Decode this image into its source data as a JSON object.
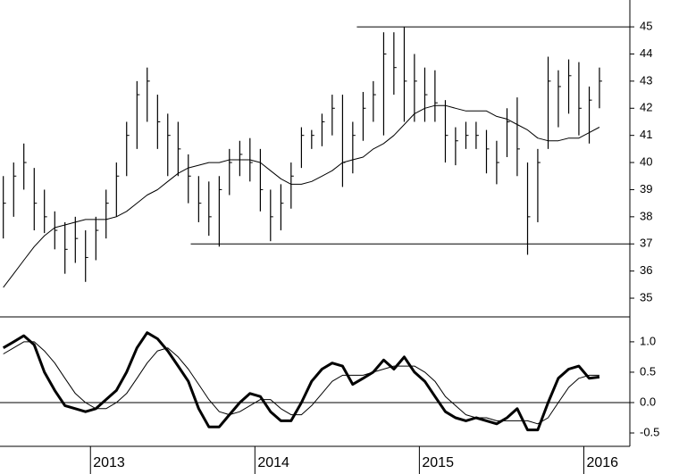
{
  "chart_data": [
    {
      "type": "ohlc",
      "x": [
        2012.47,
        2012.533,
        2012.595,
        2012.658,
        2012.72,
        2012.783,
        2012.845,
        2012.908,
        2012.97,
        2013.033,
        2013.095,
        2013.158,
        2013.22,
        2013.283,
        2013.345,
        2013.408,
        2013.47,
        2013.533,
        2013.595,
        2013.658,
        2013.72,
        2013.783,
        2013.845,
        2013.908,
        2013.97,
        2014.033,
        2014.095,
        2014.158,
        2014.22,
        2014.283,
        2014.345,
        2014.408,
        2014.47,
        2014.533,
        2014.595,
        2014.658,
        2014.72,
        2014.783,
        2014.845,
        2014.908,
        2014.97,
        2015.033,
        2015.095,
        2015.158,
        2015.22,
        2015.283,
        2015.345,
        2015.408,
        2015.47,
        2015.533,
        2015.595,
        2015.658,
        2015.72,
        2015.783,
        2015.845,
        2015.908,
        2015.97,
        2016.033,
        2016.095
      ],
      "high": [
        39.5,
        40,
        40.7,
        39.8,
        39,
        38.2,
        37.8,
        38,
        37.5,
        38,
        39,
        40,
        41.5,
        43,
        43.5,
        42.5,
        41.8,
        41.5,
        40.3,
        39.5,
        39.3,
        39.5,
        40.5,
        40.8,
        40.9,
        40.5,
        39,
        39.2,
        40,
        41.3,
        41.2,
        41.8,
        42.5,
        42.5,
        41.5,
        42.6,
        43,
        44.8,
        44.8,
        45,
        44,
        43.5,
        43.4,
        42.3,
        41.3,
        41.5,
        41.5,
        41.2,
        40.8,
        42,
        42.4,
        40,
        40.5,
        43.9,
        43.4,
        43.8,
        43.7,
        42.8,
        43.5
      ],
      "low": [
        37.2,
        38,
        39,
        37.5,
        37.4,
        36.8,
        35.9,
        36.3,
        35.6,
        36.4,
        37.2,
        38,
        39.5,
        40.5,
        41.5,
        40.5,
        39.5,
        39.5,
        38.5,
        37.8,
        37.3,
        36.9,
        38.8,
        39.5,
        39.3,
        38.2,
        37.1,
        37.5,
        38.3,
        39.8,
        40.5,
        40.6,
        41,
        39.1,
        39.6,
        40.8,
        41.5,
        41,
        42.5,
        41.5,
        41.5,
        41.5,
        41.5,
        40,
        39.9,
        40.5,
        40.5,
        39.6,
        39.2,
        40.2,
        39.5,
        36.6,
        37.8,
        40.5,
        41.3,
        41.8,
        41,
        40.7,
        42
      ],
      "close": [
        38.5,
        39.5,
        40,
        38.5,
        38,
        37.5,
        36.8,
        37.2,
        36.5,
        37.5,
        38.5,
        39.5,
        41,
        42.5,
        43,
        41.5,
        41,
        40.5,
        39.5,
        38.5,
        38,
        39,
        40,
        40.3,
        40,
        39,
        38,
        38.5,
        39.5,
        41,
        41,
        41.5,
        42,
        40,
        41,
        42,
        42.5,
        44,
        43.5,
        43,
        43,
        42.5,
        42.2,
        41,
        40.8,
        41,
        41,
        40.5,
        40,
        41.5,
        40.5,
        38,
        40,
        43,
        42.8,
        43.2,
        42,
        42.3,
        43
      ],
      "color": "#000000",
      "series": [
        {
          "color": "#000000",
          "values": [
            35.4,
            35.9,
            36.4,
            36.9,
            37.3,
            37.6,
            37.7,
            37.8,
            37.9,
            37.9,
            37.9,
            38,
            38.2,
            38.5,
            38.8,
            39,
            39.3,
            39.6,
            39.8,
            39.9,
            40,
            40,
            40.1,
            40.1,
            40.1,
            40,
            39.7,
            39.4,
            39.2,
            39.2,
            39.3,
            39.5,
            39.7,
            40,
            40.1,
            40.2,
            40.5,
            40.7,
            41,
            41.4,
            41.8,
            42,
            42.1,
            42.1,
            42,
            41.9,
            41.9,
            41.9,
            41.7,
            41.6,
            41.4,
            41.2,
            40.9,
            40.8,
            40.8,
            40.9,
            40.9,
            41.1,
            41.3
          ]
        }
      ],
      "hlines": [
        {
          "value": 45,
          "from": 2014.62
        },
        {
          "value": 37,
          "from": 2013.61
        }
      ],
      "xlim": [
        2012.45,
        2016.28
      ],
      "ylim": [
        34.31,
        45.99
      ],
      "yticks": [
        35,
        36,
        37,
        38,
        39,
        40,
        41,
        42,
        43,
        44,
        45
      ]
    },
    {
      "type": "line",
      "series": [
        {
          "color": "#000000",
          "line_width": 3,
          "values": [
            0.9,
            1.0,
            1.1,
            0.95,
            0.5,
            0.2,
            -0.05,
            -0.1,
            -0.15,
            -0.1,
            0.05,
            0.2,
            0.5,
            0.9,
            1.15,
            1.05,
            0.85,
            0.6,
            0.35,
            -0.1,
            -0.4,
            -0.4,
            -0.2,
            0.0,
            0.15,
            0.1,
            -0.15,
            -0.3,
            -0.3,
            0.0,
            0.35,
            0.55,
            0.65,
            0.6,
            0.3,
            0.4,
            0.5,
            0.7,
            0.55,
            0.75,
            0.5,
            0.35,
            0.1,
            -0.15,
            -0.25,
            -0.3,
            -0.25,
            -0.3,
            -0.35,
            -0.25,
            -0.1,
            -0.45,
            -0.45,
            0.0,
            0.4,
            0.55,
            0.6,
            0.4,
            0.42
          ]
        },
        {
          "color": "#000000",
          "line_width": 1,
          "values": [
            0.8,
            0.9,
            1.0,
            1.0,
            0.85,
            0.65,
            0.4,
            0.15,
            0.0,
            -0.1,
            -0.1,
            0.0,
            0.15,
            0.4,
            0.65,
            0.85,
            0.9,
            0.75,
            0.55,
            0.3,
            0.05,
            -0.15,
            -0.2,
            -0.15,
            -0.05,
            0.05,
            0.05,
            -0.1,
            -0.2,
            -0.2,
            -0.05,
            0.15,
            0.35,
            0.45,
            0.45,
            0.45,
            0.5,
            0.55,
            0.6,
            0.6,
            0.6,
            0.5,
            0.35,
            0.1,
            -0.05,
            -0.2,
            -0.25,
            -0.25,
            -0.3,
            -0.3,
            -0.3,
            -0.3,
            -0.35,
            -0.25,
            0.0,
            0.25,
            0.4,
            0.45,
            0.45
          ]
        }
      ],
      "hlines": [
        {
          "value": 0
        }
      ],
      "xlim": [
        2012.45,
        2016.28
      ],
      "xticks": [
        2013,
        2014,
        2015,
        2016
      ],
      "ylim": [
        -0.72,
        1.41
      ],
      "yticks": [
        {
          "value": 1,
          "label": "1.0"
        },
        0.5,
        {
          "value": 0,
          "label": "0.0"
        },
        -0.5
      ]
    }
  ]
}
